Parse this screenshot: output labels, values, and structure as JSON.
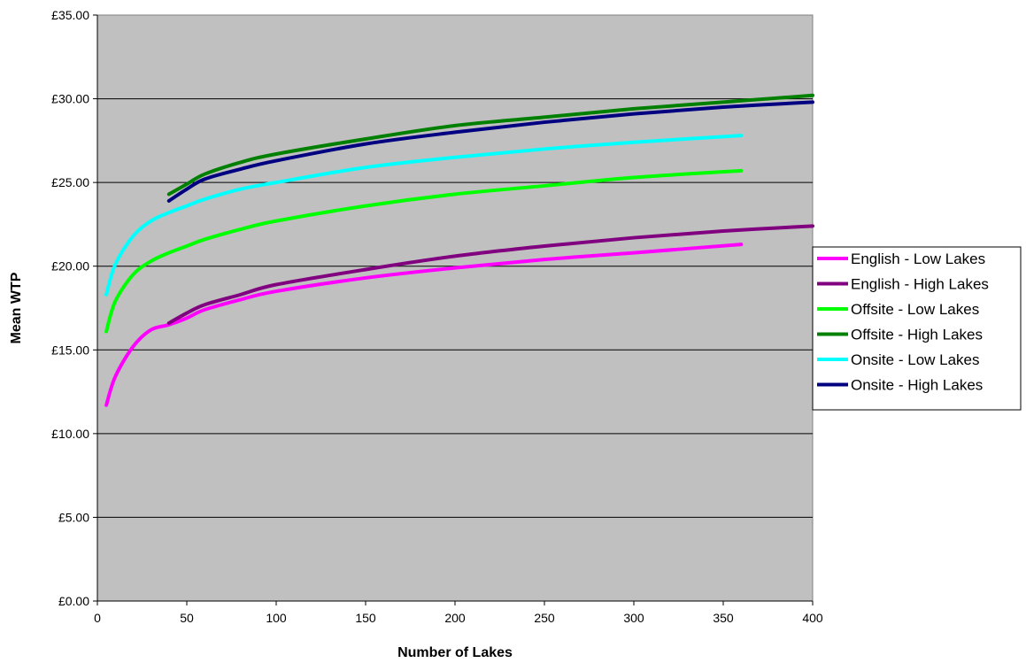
{
  "chart_data": {
    "type": "line",
    "title": "",
    "xlabel": "Number of Lakes",
    "ylabel": "Mean WTP",
    "xlim": [
      0,
      400
    ],
    "ylim": [
      0,
      35
    ],
    "x_ticks": [
      "0",
      "50",
      "100",
      "150",
      "200",
      "250",
      "300",
      "350",
      "400"
    ],
    "y_ticks": [
      "£0.00",
      "£5.00",
      "£10.00",
      "£15.00",
      "£20.00",
      "£25.00",
      "£30.00",
      "£35.00"
    ],
    "grid": "horizontal",
    "plot_background": "#c0c0c0",
    "legend_position": "right",
    "series": [
      {
        "name": "English - Low Lakes",
        "color": "#ff00ff",
        "x": [
          5,
          10,
          20,
          30,
          40,
          50,
          60,
          80,
          100,
          150,
          200,
          250,
          300,
          360
        ],
        "y": [
          11.7,
          13.4,
          15.2,
          16.2,
          16.5,
          16.9,
          17.4,
          18.0,
          18.5,
          19.3,
          19.9,
          20.4,
          20.8,
          21.3
        ]
      },
      {
        "name": "English - High Lakes",
        "color": "#800080",
        "x": [
          40,
          50,
          60,
          80,
          100,
          150,
          200,
          250,
          300,
          350,
          400
        ],
        "y": [
          16.6,
          17.2,
          17.7,
          18.3,
          18.9,
          19.8,
          20.6,
          21.2,
          21.7,
          22.1,
          22.4
        ]
      },
      {
        "name": "Offsite - Low Lakes",
        "color": "#00ff00",
        "x": [
          5,
          10,
          20,
          30,
          40,
          50,
          60,
          80,
          100,
          150,
          200,
          250,
          300,
          360
        ],
        "y": [
          16.1,
          17.9,
          19.5,
          20.3,
          20.8,
          21.2,
          21.6,
          22.2,
          22.7,
          23.6,
          24.3,
          24.8,
          25.3,
          25.7
        ]
      },
      {
        "name": "Offsite - High Lakes",
        "color": "#008000",
        "x": [
          40,
          50,
          60,
          80,
          100,
          150,
          200,
          250,
          300,
          350,
          400
        ],
        "y": [
          24.3,
          24.9,
          25.5,
          26.2,
          26.7,
          27.6,
          28.4,
          28.9,
          29.4,
          29.8,
          30.2
        ]
      },
      {
        "name": "Onsite - Low Lakes",
        "color": "#00ffff",
        "x": [
          5,
          10,
          20,
          30,
          40,
          50,
          60,
          80,
          100,
          150,
          200,
          250,
          300,
          360
        ],
        "y": [
          18.3,
          20.1,
          21.8,
          22.7,
          23.2,
          23.6,
          24.0,
          24.6,
          25.0,
          25.9,
          26.5,
          27.0,
          27.4,
          27.8
        ]
      },
      {
        "name": "Onsite - High Lakes",
        "color": "#000080",
        "x": [
          40,
          50,
          60,
          80,
          100,
          150,
          200,
          250,
          300,
          350,
          400
        ],
        "y": [
          23.9,
          24.6,
          25.2,
          25.8,
          26.3,
          27.3,
          28.0,
          28.6,
          29.1,
          29.5,
          29.8
        ]
      }
    ]
  }
}
